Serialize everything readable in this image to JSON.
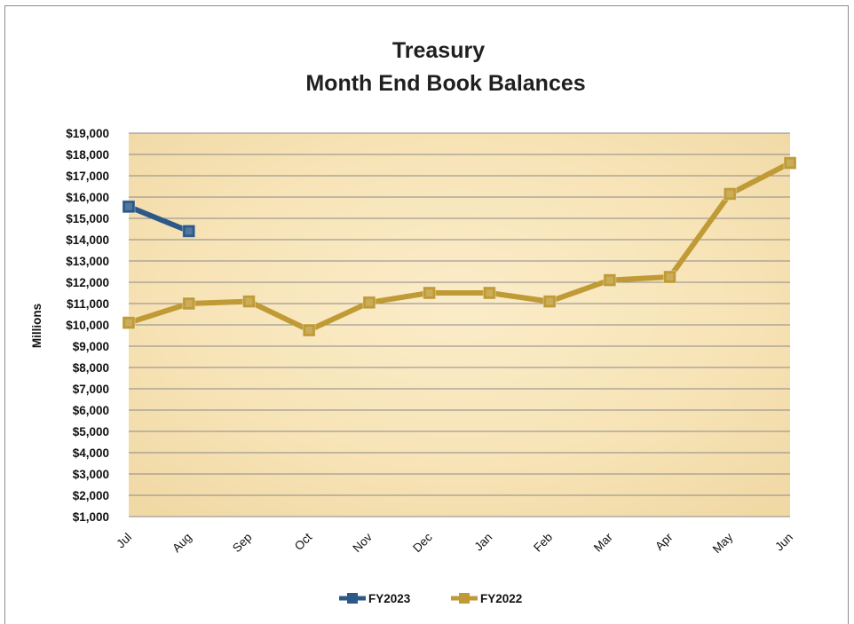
{
  "chart_data": {
    "type": "line",
    "title_lines": [
      "Treasury",
      "Month End Book Balances"
    ],
    "ylabel": "Millions",
    "ylim": [
      1000,
      19000
    ],
    "ytick_values": [
      1000,
      2000,
      3000,
      4000,
      5000,
      6000,
      7000,
      8000,
      9000,
      10000,
      11000,
      12000,
      13000,
      14000,
      15000,
      16000,
      17000,
      18000,
      19000
    ],
    "ytick_labels": [
      "$1,000",
      "$2,000",
      "$3,000",
      "$4,000",
      "$5,000",
      "$6,000",
      "$7,000",
      "$8,000",
      "$9,000",
      "$10,000",
      "$11,000",
      "$12,000",
      "$13,000",
      "$14,000",
      "$15,000",
      "$16,000",
      "$17,000",
      "$18,000",
      "$19,000"
    ],
    "categories": [
      "Jul",
      "Aug",
      "Sep",
      "Oct",
      "Nov",
      "Dec",
      "Jan",
      "Feb",
      "Mar",
      "Apr",
      "May",
      "Jun"
    ],
    "grid": true,
    "legend_position": "bottom",
    "series": [
      {
        "name": "FY2023",
        "color": "#2c5987",
        "values": [
          15550,
          14400,
          null,
          null,
          null,
          null,
          null,
          null,
          null,
          null,
          null,
          null
        ]
      },
      {
        "name": "FY2022",
        "color": "#bf9a35",
        "values": [
          10100,
          11000,
          11100,
          9750,
          11050,
          11500,
          11500,
          11100,
          12100,
          12250,
          16150,
          17600
        ]
      }
    ]
  }
}
